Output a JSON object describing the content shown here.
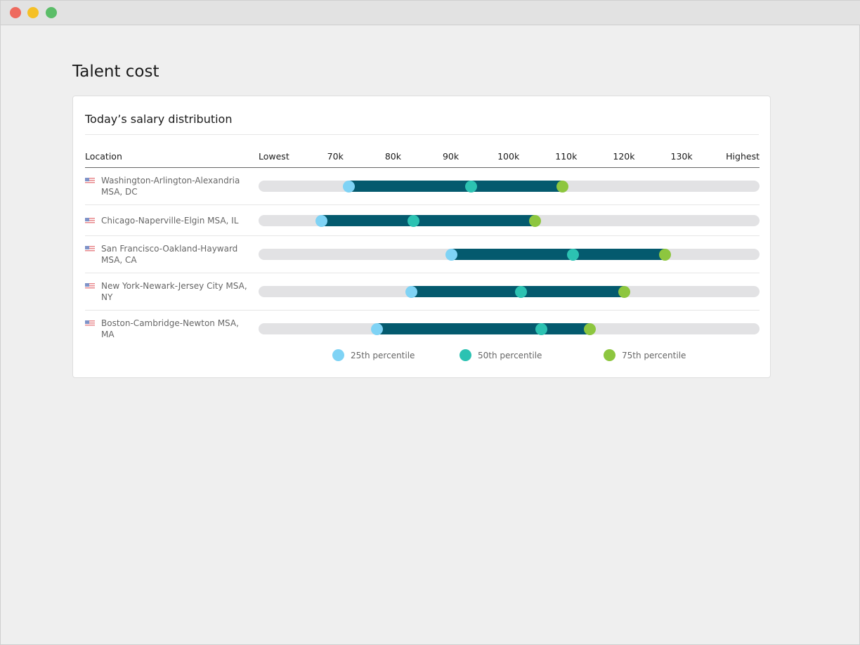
{
  "page_title": "Talent cost",
  "card_title": "Today’s salary distribution",
  "colors": {
    "p25": "#7fd3f5",
    "p50": "#2cc2b2",
    "p75": "#8dc63f",
    "range": "#045a6e",
    "track": "#e2e2e4"
  },
  "chart_data": {
    "type": "range-dot",
    "title": "Today’s salary distribution",
    "xlabel_location": "Location",
    "tick_labels": [
      "Lowest",
      "70k",
      "80k",
      "90k",
      "100k",
      "110k",
      "120k",
      "130k",
      "Highest"
    ],
    "tick_values": [
      70,
      80,
      90,
      100,
      110,
      120,
      130
    ],
    "xlim": [
      56.7,
      143.5
    ],
    "units": "k USD",
    "legend": [
      {
        "key": "p25",
        "label": "25th percentile"
      },
      {
        "key": "p50",
        "label": "50th percentile"
      },
      {
        "key": "p75",
        "label": "75th percentile"
      }
    ],
    "legend_placement": "bottom",
    "rows": [
      {
        "location": "Washington-Arlington-Alexandria MSA, DC",
        "p25": 72.3,
        "p50": 93.5,
        "p75": 109.4
      },
      {
        "location": "Chicago-Naperville-Elgin MSA, IL",
        "p25": 67.6,
        "p50": 83.5,
        "p75": 104.6
      },
      {
        "location": "San Francisco-Oakland-Hayward MSA, CA",
        "p25": 90.1,
        "p50": 111.2,
        "p75": 127.1
      },
      {
        "location": "New York-Newark-Jersey City MSA, NY",
        "p25": 83.2,
        "p50": 102.2,
        "p75": 120.1
      },
      {
        "location": "Boston-Cambridge-Newton MSA, MA",
        "p25": 77.2,
        "p50": 105.7,
        "p75": 114.1
      }
    ]
  }
}
